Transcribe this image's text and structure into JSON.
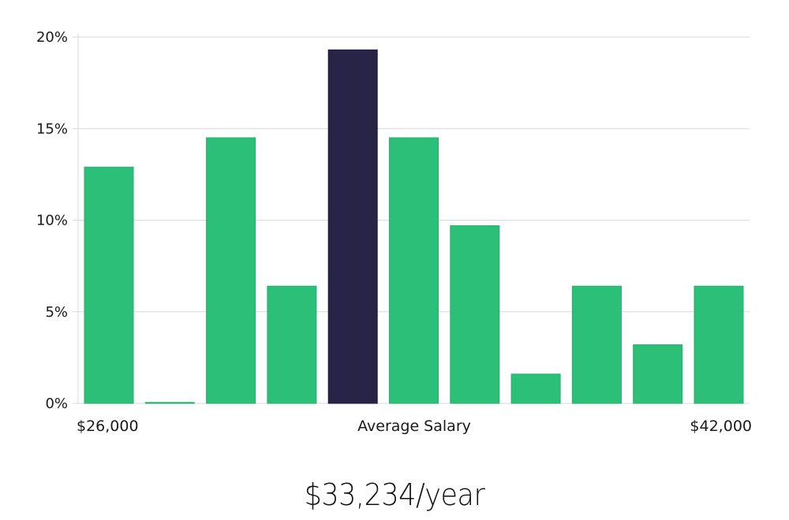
{
  "colors": {
    "bar": "#2bbf78",
    "highlight_bar": "#282447",
    "grid": "#d9d9d9",
    "text": "#1a1a1a"
  },
  "chart_data": {
    "type": "bar",
    "title": "",
    "xlabel": "Average Salary",
    "ylabel": "",
    "x_range_labels": [
      "$26,000",
      "$42,000"
    ],
    "yticks": [
      "0%",
      "5%",
      "10%",
      "15%",
      "20%"
    ],
    "ylim": [
      0,
      20
    ],
    "values": [
      12.9,
      0.05,
      14.5,
      6.4,
      19.3,
      14.5,
      9.7,
      1.6,
      6.4,
      3.2,
      6.4
    ],
    "highlight_index": 4,
    "grid": true
  },
  "summary": {
    "average_salary": "$33,234/year"
  }
}
